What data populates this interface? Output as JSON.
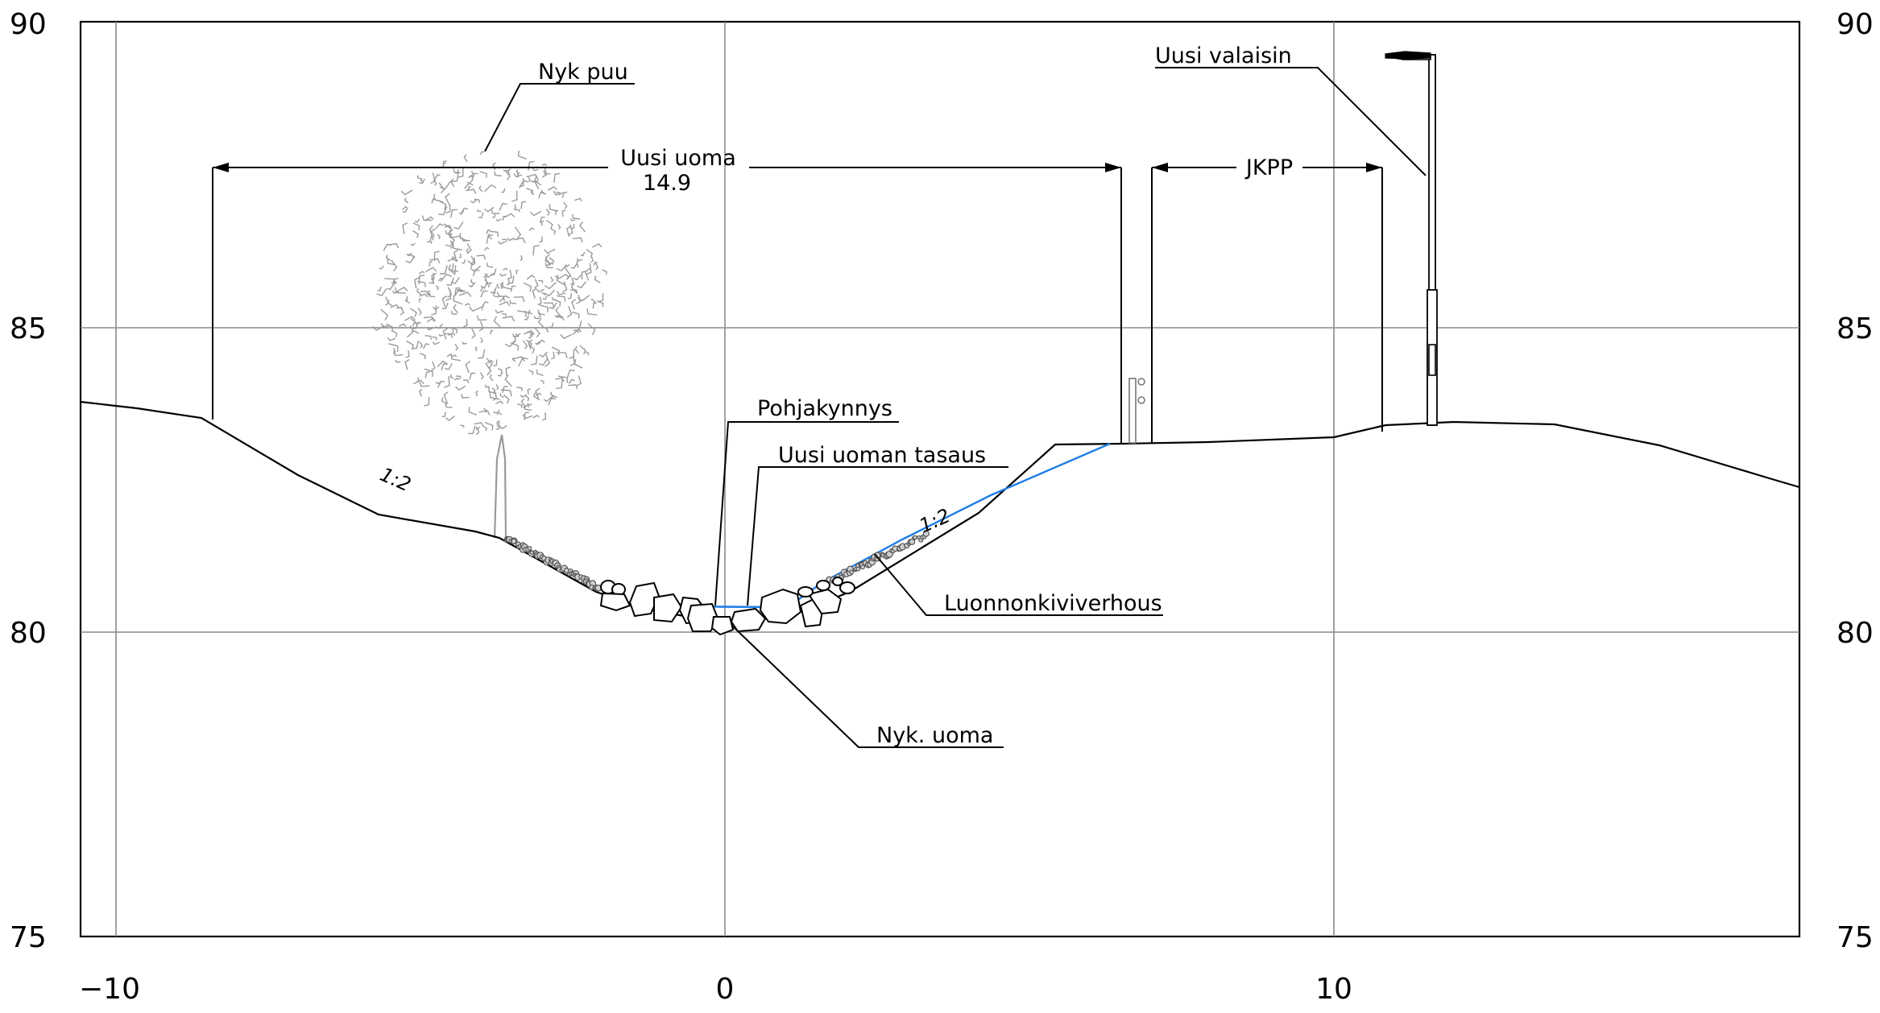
{
  "axes": {
    "elevation_labels": [
      "90",
      "85",
      "80",
      "75"
    ],
    "elevation_values": [
      90,
      85,
      80,
      75
    ],
    "station_labels": [
      "−10",
      "0",
      "10"
    ],
    "station_values": [
      -10,
      0,
      10
    ]
  },
  "annotations": {
    "nyk_puu": "Nyk puu",
    "uusi_uoma": "Uusi uoma",
    "uusi_uoma_width": "14.9",
    "jkpp": "JKPP",
    "uusi_valaisin": "Uusi valaisin",
    "pohjakynnys": "Pohjakynnys",
    "uusi_uoman_tasaus": "Uusi uoman tasaus",
    "luonnonkiviverhous": "Luonnonkiviverhous",
    "nyk_uoma": "Nyk. uoma",
    "slope_left": "1:2",
    "slope_right": "1:2"
  },
  "colors": {
    "design_line": "#1f7fe6",
    "grid": "#8a8a8a",
    "tree": "#9a9a9a"
  },
  "profile": {
    "existing_ground": [
      [
        -10.6,
        83.8
      ],
      [
        -9.0,
        83.65
      ],
      [
        -8.6,
        83.5
      ],
      [
        -7.0,
        82.5
      ],
      [
        -5.5,
        81.6
      ],
      [
        -4.2,
        81.2
      ],
      [
        -2.0,
        80.7
      ],
      [
        -1.0,
        80.3
      ],
      [
        0,
        80.1
      ],
      [
        1.0,
        80.3
      ],
      [
        2.0,
        80.7
      ],
      [
        4.2,
        81.95
      ],
      [
        5.5,
        83.1
      ],
      [
        6.5,
        83.1
      ],
      [
        10.0,
        83.2
      ],
      [
        12.0,
        83.5
      ],
      [
        14.0,
        83.45
      ],
      [
        15.5,
        83.1
      ],
      [
        17.6,
        82.45
      ]
    ],
    "new_channel": [
      [
        6.4,
        83.15
      ],
      [
        3.1,
        81.55
      ],
      [
        1.1,
        80.45
      ],
      [
        -1.0,
        80.45
      ]
    ]
  }
}
